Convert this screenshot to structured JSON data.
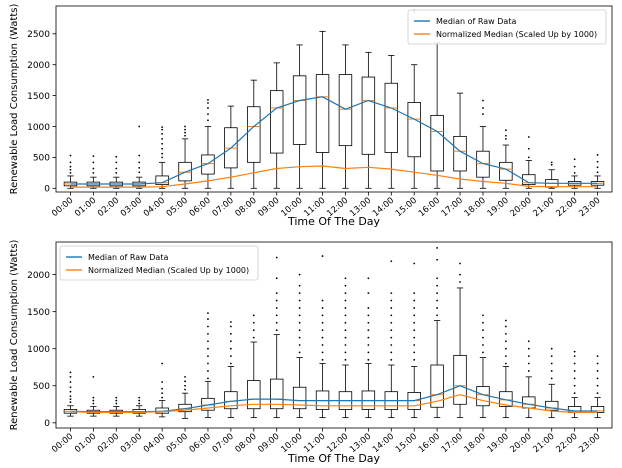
{
  "chart_data": [
    {
      "type": "box",
      "xlabel": "Time Of The Day",
      "ylabel": "Renewable Load Consumption (Watts)",
      "categories": [
        "00:00",
        "01:00",
        "02:00",
        "03:00",
        "04:00",
        "05:00",
        "06:00",
        "07:00",
        "08:00",
        "09:00",
        "10:00",
        "11:00",
        "12:00",
        "13:00",
        "14:00",
        "15:00",
        "16:00",
        "17:00",
        "18:00",
        "19:00",
        "20:00",
        "21:00",
        "22:00",
        "23:00"
      ],
      "ylim": [
        -60,
        2950
      ],
      "yticks": [
        0,
        500,
        1000,
        1500,
        2000,
        2500
      ],
      "legend_position": "top-right",
      "series": [
        {
          "name": "Median of Raw Data",
          "color": "#1f77b4",
          "values": [
            70,
            70,
            70,
            70,
            90,
            260,
            400,
            650,
            1000,
            1300,
            1420,
            1480,
            1280,
            1420,
            1300,
            1120,
            920,
            600,
            400,
            310,
            90,
            80,
            80,
            80
          ]
        },
        {
          "name": "Normalized Median (Scaled Up by 1000)",
          "color": "#ff7f0e",
          "values": [
            20,
            20,
            20,
            20,
            25,
            70,
            120,
            180,
            250,
            320,
            350,
            360,
            320,
            340,
            310,
            260,
            210,
            150,
            110,
            80,
            30,
            25,
            25,
            25
          ]
        }
      ],
      "boxes": [
        {
          "q1": 40,
          "med": 70,
          "q3": 100,
          "low": 0,
          "high": 200,
          "out": [
            250,
            300,
            350,
            420,
            530
          ]
        },
        {
          "q1": 40,
          "med": 70,
          "q3": 100,
          "low": 0,
          "high": 180,
          "out": [
            250,
            320,
            420,
            520
          ]
        },
        {
          "q1": 40,
          "med": 70,
          "q3": 100,
          "low": 0,
          "high": 180,
          "out": [
            250,
            320,
            420,
            510
          ]
        },
        {
          "q1": 40,
          "med": 70,
          "q3": 100,
          "low": 0,
          "high": 180,
          "out": [
            260,
            330,
            420,
            530,
            1000
          ]
        },
        {
          "q1": 60,
          "med": 90,
          "q3": 200,
          "low": 0,
          "high": 420,
          "out": [
            500,
            560,
            640,
            720,
            800,
            880,
            950,
            990
          ]
        },
        {
          "q1": 120,
          "med": 260,
          "q3": 420,
          "low": 0,
          "high": 800,
          "out": [
            850,
            900,
            950,
            1000
          ]
        },
        {
          "q1": 230,
          "med": 400,
          "q3": 540,
          "low": 0,
          "high": 1000,
          "out": [
            1100,
            1200,
            1300,
            1380,
            1430
          ]
        },
        {
          "q1": 330,
          "med": 650,
          "q3": 980,
          "low": 0,
          "high": 1330,
          "out": []
        },
        {
          "q1": 420,
          "med": 1000,
          "q3": 1320,
          "low": 0,
          "high": 1750,
          "out": []
        },
        {
          "q1": 570,
          "med": 1300,
          "q3": 1580,
          "low": 0,
          "high": 2030,
          "out": []
        },
        {
          "q1": 710,
          "med": 1420,
          "q3": 1820,
          "low": 0,
          "high": 2320,
          "out": []
        },
        {
          "q1": 580,
          "med": 1480,
          "q3": 1840,
          "low": 0,
          "high": 2540,
          "out": []
        },
        {
          "q1": 690,
          "med": 1280,
          "q3": 1840,
          "low": 0,
          "high": 2320,
          "out": []
        },
        {
          "q1": 550,
          "med": 1420,
          "q3": 1800,
          "low": 0,
          "high": 2200,
          "out": []
        },
        {
          "q1": 580,
          "med": 1300,
          "q3": 1700,
          "low": 0,
          "high": 2150,
          "out": []
        },
        {
          "q1": 510,
          "med": 1120,
          "q3": 1390,
          "low": 0,
          "high": 2000,
          "out": [
            2850,
            2880
          ]
        },
        {
          "q1": 280,
          "med": 920,
          "q3": 1180,
          "low": 0,
          "high": 2360,
          "out": []
        },
        {
          "q1": 280,
          "med": 600,
          "q3": 840,
          "low": 0,
          "high": 1540,
          "out": []
        },
        {
          "q1": 180,
          "med": 400,
          "q3": 600,
          "low": 0,
          "high": 1000,
          "out": [
            1200,
            1300,
            1420
          ]
        },
        {
          "q1": 130,
          "med": 310,
          "q3": 420,
          "low": 0,
          "high": 700,
          "out": [
            800,
            850,
            940
          ]
        },
        {
          "q1": 60,
          "med": 90,
          "q3": 220,
          "low": 0,
          "high": 450,
          "out": [
            500,
            640,
            830
          ]
        },
        {
          "q1": 20,
          "med": 80,
          "q3": 140,
          "low": 0,
          "high": 300,
          "out": [
            380,
            420
          ]
        },
        {
          "q1": 50,
          "med": 80,
          "q3": 110,
          "low": 0,
          "high": 200,
          "out": [
            250,
            350,
            470
          ]
        },
        {
          "q1": 50,
          "med": 80,
          "q3": 110,
          "low": 0,
          "high": 200,
          "out": [
            260,
            340,
            430,
            540
          ]
        }
      ]
    },
    {
      "type": "box",
      "xlabel": "Time Of The Day",
      "ylabel": "Renewable Load Consumption (Watts)",
      "categories": [
        "00:00",
        "01:00",
        "02:00",
        "03:00",
        "04:00",
        "05:00",
        "06:00",
        "07:00",
        "08:00",
        "09:00",
        "10:00",
        "11:00",
        "12:00",
        "13:00",
        "14:00",
        "15:00",
        "16:00",
        "17:00",
        "18:00",
        "19:00",
        "20:00",
        "21:00",
        "22:00",
        "23:00"
      ],
      "ylim": [
        -70,
        2440
      ],
      "yticks": [
        0,
        500,
        1000,
        1500,
        2000
      ],
      "legend_position": "top-left",
      "series": [
        {
          "name": "Median of Raw Data",
          "color": "#1f77b4",
          "values": [
            155,
            150,
            150,
            150,
            155,
            190,
            240,
            290,
            320,
            320,
            300,
            300,
            300,
            300,
            300,
            300,
            380,
            500,
            380,
            310,
            250,
            200,
            160,
            160
          ]
        },
        {
          "name": "Normalized Median (Scaled Up by 1000)",
          "color": "#ff7f0e",
          "values": [
            150,
            140,
            140,
            140,
            150,
            170,
            200,
            230,
            250,
            250,
            240,
            230,
            230,
            230,
            230,
            230,
            290,
            380,
            300,
            240,
            200,
            160,
            140,
            140
          ]
        }
      ],
      "boxes": [
        {
          "q1": 130,
          "med": 155,
          "q3": 180,
          "low": 90,
          "high": 230,
          "out": [
            280,
            320,
            360,
            420,
            480,
            550,
            620,
            680
          ]
        },
        {
          "q1": 130,
          "med": 150,
          "q3": 170,
          "low": 90,
          "high": 220,
          "out": [
            260,
            300,
            340,
            620
          ]
        },
        {
          "q1": 130,
          "med": 150,
          "q3": 170,
          "low": 90,
          "high": 220,
          "out": [
            260,
            300,
            340
          ]
        },
        {
          "q1": 130,
          "med": 150,
          "q3": 180,
          "low": 90,
          "high": 230,
          "out": [
            260,
            300,
            340
          ]
        },
        {
          "q1": 130,
          "med": 155,
          "q3": 200,
          "low": 80,
          "high": 300,
          "out": [
            340,
            400,
            460,
            550,
            800
          ]
        },
        {
          "q1": 150,
          "med": 190,
          "q3": 250,
          "low": 60,
          "high": 400,
          "out": [
            450,
            500,
            560,
            620
          ]
        },
        {
          "q1": 170,
          "med": 240,
          "q3": 330,
          "low": 70,
          "high": 560,
          "out": [
            600,
            700,
            800,
            900,
            1000,
            1100,
            1200,
            1300,
            1400,
            1480
          ]
        },
        {
          "q1": 190,
          "med": 290,
          "q3": 420,
          "low": 70,
          "high": 760,
          "out": [
            800,
            900,
            1000,
            1100,
            1200,
            1300,
            1360
          ]
        },
        {
          "q1": 190,
          "med": 320,
          "q3": 570,
          "low": 70,
          "high": 1090,
          "out": [
            1150,
            1250,
            1350,
            1450
          ]
        },
        {
          "q1": 190,
          "med": 320,
          "q3": 590,
          "low": 70,
          "high": 1190,
          "out": [
            1250,
            1350,
            1450,
            1550,
            1650,
            1750,
            1950,
            2230
          ]
        },
        {
          "q1": 190,
          "med": 300,
          "q3": 480,
          "low": 70,
          "high": 880,
          "out": [
            950,
            1050,
            1150,
            1250,
            1350,
            1450,
            1550,
            1650,
            1750,
            1850,
            2000
          ]
        },
        {
          "q1": 180,
          "med": 300,
          "q3": 430,
          "low": 70,
          "high": 800,
          "out": [
            850,
            950,
            1050,
            1150,
            1250,
            1350,
            1450,
            1550,
            1650,
            2250
          ]
        },
        {
          "q1": 180,
          "med": 300,
          "q3": 420,
          "low": 70,
          "high": 780,
          "out": [
            850,
            950,
            1050,
            1150,
            1250,
            1350,
            1450,
            1550,
            1650,
            1750,
            1850,
            1950
          ]
        },
        {
          "q1": 180,
          "med": 300,
          "q3": 430,
          "low": 70,
          "high": 800,
          "out": [
            850,
            950,
            1050,
            1150,
            1250,
            1350,
            1450,
            1550,
            1750,
            1950
          ]
        },
        {
          "q1": 180,
          "med": 300,
          "q3": 420,
          "low": 70,
          "high": 780,
          "out": [
            850,
            950,
            1050,
            1150,
            1250,
            1350,
            1450,
            1550,
            1650,
            1750,
            2180
          ]
        },
        {
          "q1": 180,
          "med": 300,
          "q3": 410,
          "low": 70,
          "high": 760,
          "out": [
            850,
            950,
            1050,
            1150,
            1250,
            1350,
            1450,
            1550,
            1650,
            1750,
            2150
          ]
        },
        {
          "q1": 210,
          "med": 380,
          "q3": 780,
          "low": 70,
          "high": 1380,
          "out": [
            1450,
            1550,
            1650,
            1750,
            1850,
            1950,
            2200,
            2360
          ]
        },
        {
          "q1": 250,
          "med": 500,
          "q3": 910,
          "low": 70,
          "high": 1820,
          "out": [
            1900,
            2000,
            2150
          ]
        },
        {
          "q1": 230,
          "med": 380,
          "q3": 490,
          "low": 70,
          "high": 880,
          "out": [
            950,
            1050,
            1150,
            1250,
            1350,
            1450
          ]
        },
        {
          "q1": 220,
          "med": 310,
          "q3": 420,
          "low": 70,
          "high": 760,
          "out": [
            800,
            900,
            1000,
            1100,
            1200,
            1300,
            1380
          ]
        },
        {
          "q1": 200,
          "med": 250,
          "q3": 350,
          "low": 70,
          "high": 620,
          "out": [
            700,
            800,
            900,
            1000,
            1100
          ]
        },
        {
          "q1": 170,
          "med": 200,
          "q3": 290,
          "low": 70,
          "high": 520,
          "out": [
            600,
            700,
            800,
            900,
            1000
          ]
        },
        {
          "q1": 140,
          "med": 160,
          "q3": 220,
          "low": 70,
          "high": 340,
          "out": [
            400,
            500,
            600,
            700,
            800,
            900,
            960
          ]
        },
        {
          "q1": 140,
          "med": 160,
          "q3": 220,
          "low": 70,
          "high": 340,
          "out": [
            400,
            500,
            600,
            700,
            800,
            900
          ]
        }
      ]
    }
  ]
}
